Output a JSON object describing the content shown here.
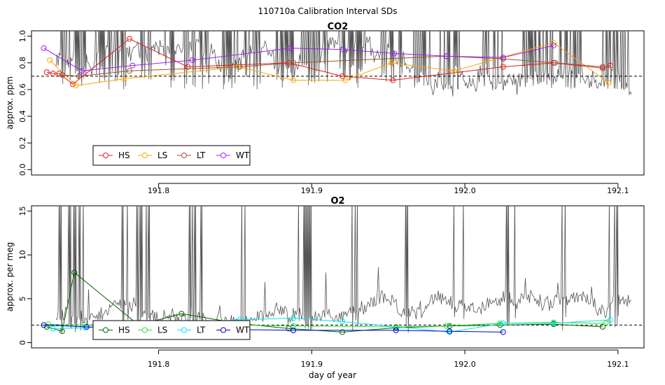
{
  "header": {
    "title": "110710a   Calibration Interval SDs"
  },
  "xaxis": {
    "label": "day of year",
    "ticks": [
      191.8,
      191.9,
      192.0,
      192.1
    ],
    "tick_labels": [
      "191.8",
      "191.9",
      "192.0",
      "192.1"
    ],
    "range": [
      191.717,
      192.117
    ]
  },
  "chart_data": [
    {
      "type": "line",
      "title": "CO2",
      "xlabel": "",
      "ylabel": "approx. ppm",
      "xlim": [
        191.717,
        192.117
      ],
      "ylim": [
        -0.04,
        1.04
      ],
      "yticks": [
        0.0,
        0.2,
        0.4,
        0.6,
        0.8,
        1.0
      ],
      "ytick_labels": [
        "0.0",
        "0.2",
        "0.4",
        "0.6",
        "0.8",
        "1.0"
      ],
      "reference_line": 0.7,
      "legend_position": "bottom-left",
      "background_trace_color": "#555555",
      "series": [
        {
          "name": "HS",
          "color": "#e41a1c",
          "x": [
            191.727,
            191.731,
            191.735,
            191.744,
            191.781,
            191.819,
            191.885,
            191.92,
            191.953,
            192.025,
            192.058,
            192.09,
            192.095
          ],
          "y": [
            0.73,
            0.72,
            0.72,
            0.64,
            0.98,
            0.77,
            0.8,
            0.7,
            0.67,
            0.77,
            0.8,
            0.76,
            0.78
          ]
        },
        {
          "name": "LS",
          "color": "#ffa500",
          "x": [
            191.729,
            191.746,
            191.777,
            191.852,
            191.888,
            191.922,
            191.952,
            191.993,
            192.058,
            192.094
          ],
          "y": [
            0.82,
            0.63,
            0.68,
            0.77,
            0.67,
            0.67,
            0.8,
            0.74,
            0.95,
            0.65
          ]
        },
        {
          "name": "LT",
          "color": "#a0522d",
          "x": [
            191.737,
            191.748,
            191.781,
            191.853,
            191.888,
            191.988,
            192.025,
            192.059,
            192.09
          ],
          "y": [
            0.71,
            0.7,
            0.74,
            0.77,
            0.8,
            0.85,
            0.83,
            0.8,
            0.77
          ]
        },
        {
          "name": "WT",
          "color": "#a020f0",
          "x": [
            191.725,
            191.75,
            191.783,
            191.822,
            191.886,
            191.92,
            191.954,
            191.988,
            192.025,
            192.058
          ],
          "y": [
            0.91,
            0.74,
            0.78,
            0.82,
            0.91,
            0.9,
            0.87,
            0.85,
            0.84,
            0.93
          ]
        }
      ]
    },
    {
      "type": "line",
      "title": "O2",
      "xlabel": "day of year",
      "ylabel": "approx. per meg",
      "xlim": [
        191.717,
        192.117
      ],
      "ylim": [
        -0.6,
        15.6
      ],
      "yticks": [
        0,
        5,
        10,
        15
      ],
      "ytick_labels": [
        "0",
        "5",
        "10",
        "15"
      ],
      "reference_line": 2,
      "legend_position": "bottom-left",
      "background_trace_color": "#555555",
      "series": [
        {
          "name": "HS",
          "color": "#006400",
          "x": [
            191.727,
            191.737,
            191.745,
            191.787,
            191.815,
            191.852,
            191.885,
            191.92,
            191.955,
            191.99,
            192.023,
            192.058,
            192.09
          ],
          "y": [
            1.8,
            1.3,
            8.0,
            2.0,
            3.3,
            2.2,
            1.6,
            1.2,
            1.7,
            1.9,
            2.0,
            2.1,
            1.8
          ]
        },
        {
          "name": "LS",
          "color": "#33dd33",
          "x": [
            191.728,
            191.752,
            191.787,
            191.82,
            191.853,
            191.888,
            191.955,
            191.988,
            192.023,
            192.058,
            192.092
          ],
          "y": [
            2.1,
            2.0,
            2.3,
            2.1,
            2.0,
            1.9,
            1.8,
            1.9,
            2.2,
            2.3,
            2.2
          ]
        },
        {
          "name": "LT",
          "color": "#00e5ee",
          "x": [
            191.731,
            191.752,
            191.82,
            191.853,
            191.888,
            191.92,
            191.99,
            192.025,
            192.058,
            192.095
          ],
          "y": [
            1.6,
            1.7,
            2.3,
            2.6,
            2.8,
            2.4,
            1.2,
            2.2,
            2.2,
            2.6
          ]
        },
        {
          "name": "WT",
          "color": "#0000cd",
          "x": [
            191.725,
            191.753,
            191.787,
            191.82,
            191.853,
            191.888,
            191.955,
            191.99,
            192.025
          ],
          "y": [
            2.0,
            1.8,
            1.7,
            1.6,
            1.5,
            1.4,
            1.4,
            1.3,
            1.2
          ]
        }
      ]
    }
  ]
}
